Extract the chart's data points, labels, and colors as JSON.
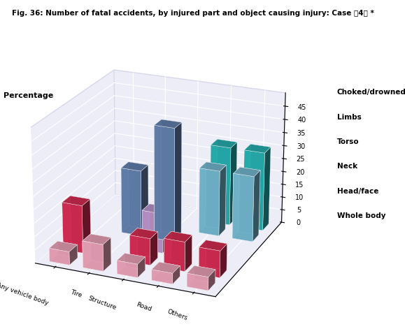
{
  "title": "Fig. 36: Number of fatal accidents, by injured part and object causing injury: Case （4） *",
  "ylabel": "Percentage",
  "x_categories": [
    "Any vehicle body",
    "Tire",
    "Structure",
    "Road",
    "Others"
  ],
  "series_front_to_back": [
    {
      "label": "Whole body",
      "color": "#FFB0C8",
      "edge_color": "#FF80A0",
      "values": [
        5,
        10,
        5,
        4,
        5
      ]
    },
    {
      "label": "Head/face",
      "color": "#E8305A",
      "edge_color": "#C01040",
      "values": [
        18,
        0,
        10,
        11,
        10
      ]
    },
    {
      "label": "Neck",
      "color": "#C9A0DC",
      "edge_color": "#A870BC",
      "values": [
        0,
        0,
        15,
        0,
        0
      ]
    },
    {
      "label": "Torso",
      "color": "#6B8CBE",
      "edge_color": "#4B6C9E",
      "values": [
        0,
        25,
        43,
        0,
        0
      ]
    },
    {
      "label": "Limbs",
      "color": "#7EC8E3",
      "edge_color": "#4EA8C3",
      "values": [
        0,
        0,
        0,
        25,
        25
      ]
    },
    {
      "label": "Choked/drowned",
      "color": "#2ABFBF",
      "edge_color": "#009F9F",
      "values": [
        0,
        0,
        0,
        30,
        30
      ]
    }
  ],
  "ylim": [
    0,
    50
  ],
  "yticks": [
    0,
    5,
    10,
    15,
    20,
    25,
    30,
    35,
    40,
    45
  ],
  "wall_color": "#D8D8F0",
  "figsize": [
    5.79,
    4.71
  ],
  "dpi": 100,
  "elev": 22,
  "azim": -67
}
